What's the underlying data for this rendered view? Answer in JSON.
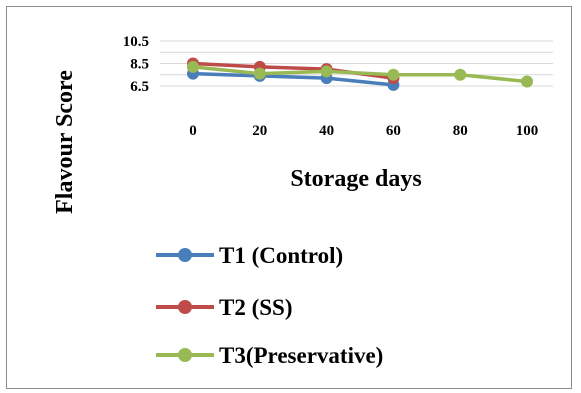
{
  "chart_data": {
    "type": "line",
    "title": "",
    "xlabel": "Storage days",
    "ylabel": "Flavour Score",
    "x": [
      0,
      20,
      40,
      60,
      80,
      100
    ],
    "x_tick_labels": [
      "0",
      "20",
      "40",
      "60",
      "80",
      "100"
    ],
    "y_tick_labels": [
      "10.5",
      "8.5",
      "6.5"
    ],
    "ylim": [
      6.5,
      10.5
    ],
    "grid": true,
    "legend_position": "bottom",
    "series": [
      {
        "name": "T1 (Control)",
        "color": "#4a7ebb",
        "x": [
          0,
          20,
          40,
          60
        ],
        "values": [
          7.6,
          7.4,
          7.2,
          6.6
        ]
      },
      {
        "name": "T2 (SS)",
        "color": "#be4b48",
        "x": [
          0,
          20,
          40,
          60
        ],
        "values": [
          8.5,
          8.2,
          8.0,
          7.2
        ]
      },
      {
        "name": "T3(Preservative)",
        "color": "#98b954",
        "x": [
          0,
          20,
          40,
          60,
          80,
          100
        ],
        "values": [
          8.2,
          7.6,
          7.8,
          7.5,
          7.5,
          6.9
        ]
      }
    ]
  }
}
